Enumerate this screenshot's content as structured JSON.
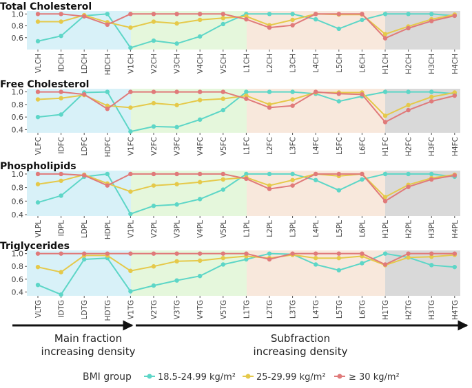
{
  "chart_data": [
    {
      "type": "line",
      "title": "Total Cholesterol",
      "categories": [
        "VLCH",
        "IDCH",
        "LDCH",
        "HDCH",
        "V1CH",
        "V2CH",
        "V3CH",
        "V4CH",
        "V5CH",
        "L1CH",
        "L2CH",
        "L3CH",
        "L4CH",
        "L5CH",
        "L6CH",
        "H1CH",
        "H2CH",
        "H3CH",
        "H4CH"
      ],
      "yticks": [
        "0.6",
        "0.8",
        "1.0"
      ],
      "ylim": [
        0.4,
        1.05
      ],
      "series": [
        {
          "name": "18.5-24.99 kg/m²",
          "values": [
            0.54,
            0.63,
            0.97,
            1.0,
            0.43,
            0.55,
            0.5,
            0.62,
            0.83,
            1.0,
            1.0,
            1.0,
            0.91,
            0.75,
            0.9,
            1.0,
            1.0,
            1.0,
            0.97
          ]
        },
        {
          "name": "25-29.99 kg/m²",
          "values": [
            0.87,
            0.87,
            0.98,
            0.86,
            0.77,
            0.87,
            0.84,
            0.9,
            0.93,
            0.96,
            0.81,
            0.9,
            1.0,
            0.99,
            0.99,
            0.66,
            0.79,
            0.91,
            0.99
          ]
        },
        {
          "name": "≥ 30 kg/m²",
          "values": [
            1.0,
            1.0,
            0.96,
            0.82,
            1.0,
            1.0,
            1.0,
            1.0,
            1.0,
            0.91,
            0.77,
            0.81,
            1.0,
            1.0,
            1.0,
            0.59,
            0.76,
            0.88,
            0.97
          ]
        }
      ]
    },
    {
      "type": "line",
      "title": "Free Cholesterol",
      "categories": [
        "VLFC",
        "IDFC",
        "LDFC",
        "HDFC",
        "V1FC",
        "V2FC",
        "V3FC",
        "V4FC",
        "V5FC",
        "L1FC",
        "L2FC",
        "L3FC",
        "L4FC",
        "L5FC",
        "L6FC",
        "H1FC",
        "H2FC",
        "H3FC",
        "H4FC"
      ],
      "yticks": [
        "0.4",
        "0.6",
        "0.8",
        "1.0"
      ],
      "ylim": [
        0.35,
        1.05
      ],
      "series": [
        {
          "name": "18.5-24.99 kg/m²",
          "values": [
            0.6,
            0.64,
            0.99,
            1.0,
            0.37,
            0.45,
            0.44,
            0.56,
            0.71,
            1.0,
            1.0,
            1.0,
            0.97,
            0.85,
            0.93,
            1.0,
            1.0,
            1.0,
            0.97
          ]
        },
        {
          "name": "25-29.99 kg/m²",
          "values": [
            0.88,
            0.9,
            0.95,
            0.78,
            0.75,
            0.82,
            0.79,
            0.87,
            0.89,
            0.94,
            0.8,
            0.88,
            0.99,
            0.99,
            0.99,
            0.62,
            0.79,
            0.92,
            0.99
          ]
        },
        {
          "name": "≥ 30 kg/m²",
          "values": [
            1.0,
            1.0,
            0.96,
            0.73,
            1.0,
            1.0,
            1.0,
            1.0,
            1.0,
            0.89,
            0.75,
            0.78,
            1.0,
            0.97,
            0.96,
            0.52,
            0.71,
            0.85,
            0.94
          ]
        }
      ]
    },
    {
      "type": "line",
      "title": "Phospholipids",
      "categories": [
        "VLPL",
        "IDPL",
        "LDPL",
        "HDPL",
        "V1PL",
        "V2PL",
        "V3PL",
        "V4PL",
        "V5PL",
        "L1PL",
        "L2PL",
        "L3PL",
        "L4PL",
        "L5PL",
        "L6PL",
        "H1PL",
        "H2PL",
        "H3PL",
        "H4PL"
      ],
      "yticks": [
        "0.4",
        "0.6",
        "0.8",
        "1.0"
      ],
      "ylim": [
        0.38,
        1.05
      ],
      "series": [
        {
          "name": "18.5-24.99 kg/m²",
          "values": [
            0.58,
            0.68,
            0.96,
            1.0,
            0.41,
            0.53,
            0.55,
            0.63,
            0.77,
            1.0,
            1.0,
            1.0,
            0.91,
            0.76,
            0.92,
            1.0,
            1.0,
            1.0,
            0.96
          ]
        },
        {
          "name": "25-29.99 kg/m²",
          "values": [
            0.85,
            0.9,
            0.99,
            0.86,
            0.74,
            0.83,
            0.85,
            0.88,
            0.92,
            0.95,
            0.83,
            0.91,
            1.0,
            0.97,
            1.0,
            0.66,
            0.84,
            0.94,
            0.99
          ]
        },
        {
          "name": "≥ 30 kg/m²",
          "values": [
            1.0,
            1.0,
            0.98,
            0.83,
            1.0,
            1.0,
            1.0,
            1.0,
            1.0,
            0.93,
            0.78,
            0.83,
            1.0,
            1.0,
            1.0,
            0.6,
            0.81,
            0.92,
            0.98
          ]
        }
      ]
    },
    {
      "type": "line",
      "title": "Triglycerides",
      "categories": [
        "VLTG",
        "IDTG",
        "LDTG",
        "HDTG",
        "V1TG",
        "V2TG",
        "V3TG",
        "V4TG",
        "V5TG",
        "L1TG",
        "L2TG",
        "L3TG",
        "L4TG",
        "L5TG",
        "L6TG",
        "H1TG",
        "H2TG",
        "H3TG",
        "H4TG"
      ],
      "yticks": [
        "0.4",
        "0.6",
        "0.8",
        "1.0"
      ],
      "ylim": [
        0.34,
        1.05
      ],
      "series": [
        {
          "name": "18.5-24.99 kg/m²",
          "values": [
            0.51,
            0.36,
            0.91,
            0.93,
            0.41,
            0.5,
            0.58,
            0.65,
            0.83,
            0.91,
            1.0,
            0.99,
            0.83,
            0.74,
            0.85,
            1.0,
            0.94,
            0.82,
            0.79
          ]
        },
        {
          "name": "25-29.99 kg/m²",
          "values": [
            0.79,
            0.71,
            0.97,
            0.97,
            0.73,
            0.8,
            0.88,
            0.89,
            0.93,
            0.96,
            0.93,
            0.98,
            0.93,
            0.93,
            0.96,
            0.82,
            0.94,
            0.95,
            0.98
          ]
        },
        {
          "name": "≥ 30 kg/m²",
          "values": [
            1.0,
            1.0,
            1.0,
            1.0,
            1.0,
            1.0,
            1.0,
            1.0,
            1.0,
            1.0,
            0.91,
            1.0,
            1.0,
            1.0,
            1.0,
            0.83,
            1.0,
            1.0,
            1.0
          ]
        }
      ]
    }
  ],
  "colors": {
    "series": [
      "#5dd6c7",
      "#e5c94a",
      "#e07a7a"
    ],
    "main_fraction_bg": "#d8f1f8",
    "vldl_bg": "#e5f7dc",
    "ldl_bg": "#f8e8dc",
    "hdl_bg": "#d9d9d9"
  },
  "annotations": {
    "main_label_line1": "Main fraction",
    "main_label_line2": "increasing density",
    "sub_label_line1": "Subfraction",
    "sub_label_line2": "increasing density"
  },
  "legend": {
    "title": "BMI group",
    "items": [
      "18.5-24.99 kg/m²",
      "25-29.99 kg/m²",
      "≥ 30 kg/m²"
    ],
    "placement": "bottom"
  }
}
